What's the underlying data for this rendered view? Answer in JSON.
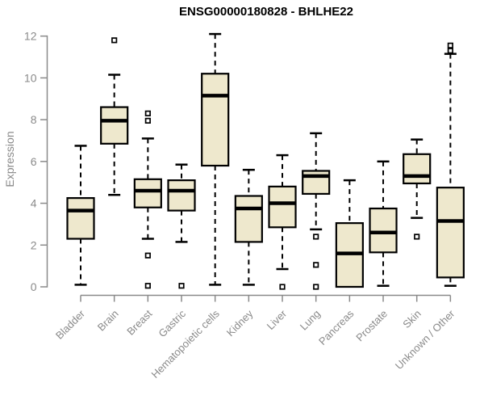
{
  "chart_data": {
    "type": "boxplot",
    "title": "ENSG00000180828 - BHLHE22",
    "ylabel": "Expression",
    "xlabel": "",
    "ylim": [
      0,
      12
    ],
    "yticks": [
      0,
      2,
      4,
      6,
      8,
      10,
      12
    ],
    "grid": false,
    "legend": "none",
    "colors": {
      "box_fill": "#EEE8CD",
      "box_border": "#000000",
      "median": "#000000",
      "whisker": "#000000",
      "outlier_fill": "#FFFFFF",
      "axis": "#8A8A8A",
      "tick_label": "#8A8A8A",
      "title": "#000000"
    },
    "categories": [
      "Bladder",
      "Brain",
      "Breast",
      "Gastric",
      "Hematopoietic cells",
      "Kidney",
      "Liver",
      "Lung",
      "Pancreas",
      "Prostate",
      "Skin",
      "Unknown / Other"
    ],
    "series": [
      {
        "category": "Bladder",
        "low": 0.1,
        "q1": 2.3,
        "median": 3.65,
        "q3": 4.25,
        "high": 6.75,
        "outliers": []
      },
      {
        "category": "Brain",
        "low": 4.4,
        "q1": 6.85,
        "median": 7.95,
        "q3": 8.6,
        "high": 10.15,
        "outliers": [
          11.8
        ]
      },
      {
        "category": "Breast",
        "low": 2.3,
        "q1": 3.8,
        "median": 4.6,
        "q3": 5.15,
        "high": 7.1,
        "outliers": [
          8.3,
          7.95,
          1.5,
          0.05
        ]
      },
      {
        "category": "Gastric",
        "low": 2.15,
        "q1": 3.65,
        "median": 4.6,
        "q3": 5.1,
        "high": 5.85,
        "outliers": [
          0.05
        ]
      },
      {
        "category": "Hematopoietic cells",
        "low": 0.1,
        "q1": 5.8,
        "median": 9.15,
        "q3": 10.2,
        "high": 12.1,
        "outliers": []
      },
      {
        "category": "Kidney",
        "low": 0.1,
        "q1": 2.15,
        "median": 3.75,
        "q3": 4.35,
        "high": 5.6,
        "outliers": []
      },
      {
        "category": "Liver",
        "low": 0.85,
        "q1": 2.85,
        "median": 4.0,
        "q3": 4.8,
        "high": 6.3,
        "outliers": [
          0.0
        ]
      },
      {
        "category": "Lung",
        "low": 2.75,
        "q1": 4.45,
        "median": 5.3,
        "q3": 5.55,
        "high": 7.35,
        "outliers": [
          2.4,
          1.05,
          0.0
        ]
      },
      {
        "category": "Pancreas",
        "low": 0.0,
        "q1": 0.0,
        "median": 1.6,
        "q3": 3.05,
        "high": 5.1,
        "outliers": []
      },
      {
        "category": "Prostate",
        "low": 0.05,
        "q1": 1.65,
        "median": 2.6,
        "q3": 3.75,
        "high": 6.0,
        "outliers": []
      },
      {
        "category": "Skin",
        "low": 3.3,
        "q1": 4.95,
        "median": 5.3,
        "q3": 6.35,
        "high": 7.05,
        "outliers": [
          2.4
        ]
      },
      {
        "category": "Unknown / Other",
        "low": 0.05,
        "q1": 0.45,
        "median": 3.15,
        "q3": 4.75,
        "high": 11.15,
        "outliers": [
          11.55,
          11.3
        ]
      }
    ]
  }
}
